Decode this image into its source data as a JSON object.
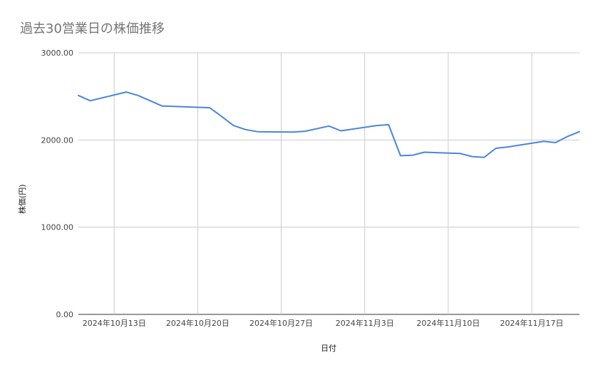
{
  "chart_data": {
    "type": "line",
    "title": "過去30営業日の株価推移",
    "xlabel": "日付",
    "ylabel": "株価(円)",
    "ylim": [
      0,
      3000
    ],
    "yticks": [
      "3000.00",
      "2000.00",
      "1000.00",
      "0.00"
    ],
    "ytick_values": [
      3000,
      2000,
      1000,
      0
    ],
    "xlim": [
      "2024-10-10",
      "2024-11-21"
    ],
    "xticks": [
      "2024年10月13日",
      "2024年10月20日",
      "2024年10月27日",
      "2024年11月3日",
      "2024年11月10日",
      "2024年11月17日"
    ],
    "xtick_dates": [
      "2024-10-13",
      "2024-10-20",
      "2024-10-27",
      "2024-11-03",
      "2024-11-10",
      "2024-11-17"
    ],
    "grid": true,
    "legend": "none",
    "series": [
      {
        "color": "#4a86d8",
        "x": [
          "2024-10-10",
          "2024-10-11",
          "2024-10-14",
          "2024-10-15",
          "2024-10-17",
          "2024-10-18",
          "2024-10-21",
          "2024-10-22",
          "2024-10-23",
          "2024-10-24",
          "2024-10-25",
          "2024-10-28",
          "2024-10-29",
          "2024-10-31",
          "2024-11-01",
          "2024-11-04",
          "2024-11-05",
          "2024-11-06",
          "2024-11-07",
          "2024-11-08",
          "2024-11-11",
          "2024-11-12",
          "2024-11-13",
          "2024-11-14",
          "2024-11-15",
          "2024-11-18",
          "2024-11-19",
          "2024-11-20",
          "2024-11-21"
        ],
        "y": [
          2510,
          2450,
          2550,
          2510,
          2390,
          2385,
          2370,
          2270,
          2165,
          2120,
          2095,
          2090,
          2100,
          2160,
          2105,
          2165,
          2175,
          1820,
          1825,
          1860,
          1845,
          1810,
          1800,
          1905,
          1920,
          1985,
          1970,
          2040,
          2095
        ]
      }
    ]
  }
}
